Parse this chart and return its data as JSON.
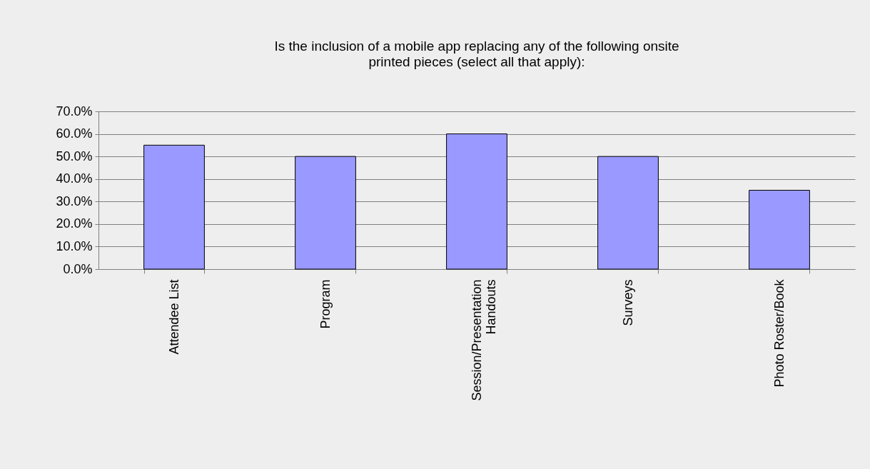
{
  "chart_data": {
    "type": "bar",
    "title": "Is the inclusion of a mobile app replacing any of the following onsite printed pieces (select all that apply):",
    "categories": [
      "Attendee List",
      "Program",
      "Session/Presentation Handouts",
      "Surveys",
      "Photo Roster/Book"
    ],
    "values": [
      55,
      50,
      60,
      50,
      35
    ],
    "color": "#9999ff",
    "ylim": [
      0,
      70
    ],
    "yticks": [
      {
        "value": 0,
        "label": "0.0%"
      },
      {
        "value": 10,
        "label": "10.0%"
      },
      {
        "value": 20,
        "label": "20.0%"
      },
      {
        "value": 30,
        "label": "30.0%"
      },
      {
        "value": 40,
        "label": "40.0%"
      },
      {
        "value": 50,
        "label": "50.0%"
      },
      {
        "value": 60,
        "label": "60.0%"
      },
      {
        "value": 70,
        "label": "70.0%"
      }
    ],
    "grid": "y"
  }
}
